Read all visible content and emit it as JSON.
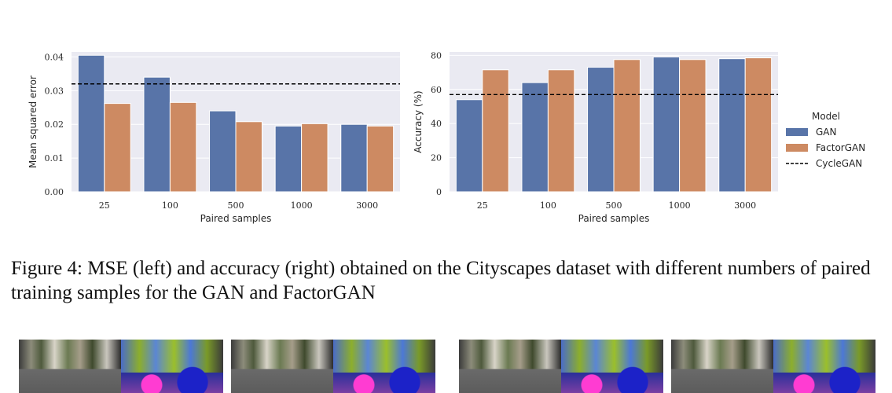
{
  "colors": {
    "gan": "#5874a8",
    "factorgan": "#cd8a62",
    "panel_bg": "#eaeaf2",
    "grid": "#ffffff",
    "baseline": "#000000"
  },
  "legend": {
    "title": "Model",
    "items": [
      {
        "label": "GAN",
        "kind": "bar",
        "color": "#5874a8"
      },
      {
        "label": "FactorGAN",
        "kind": "bar",
        "color": "#cd8a62"
      },
      {
        "label": "CycleGAN",
        "kind": "dashed-line",
        "color": "#000000"
      }
    ],
    "placement": "right"
  },
  "chart_data": [
    {
      "type": "bar",
      "title": "",
      "xlabel": "Paired samples",
      "ylabel": "Mean squared error",
      "categories": [
        "25",
        "100",
        "500",
        "1000",
        "3000"
      ],
      "series": [
        {
          "name": "GAN",
          "values": [
            0.0405,
            0.034,
            0.024,
            0.0195,
            0.02
          ]
        },
        {
          "name": "FactorGAN",
          "values": [
            0.0262,
            0.0265,
            0.0208,
            0.0202,
            0.0195
          ]
        }
      ],
      "reference_lines": [
        {
          "name": "CycleGAN",
          "value": 0.032,
          "style": "dashed"
        }
      ],
      "ylim": [
        0,
        0.0415
      ],
      "yticks": [
        "0.00",
        "0.01",
        "0.02",
        "0.03",
        "0.04"
      ],
      "ytick_values": [
        0,
        0.01,
        0.02,
        0.03,
        0.04
      ],
      "grid": true
    },
    {
      "type": "bar",
      "title": "",
      "xlabel": "Paired samples",
      "ylabel": "Accuracy (%)",
      "categories": [
        "25",
        "100",
        "500",
        "1000",
        "3000"
      ],
      "series": [
        {
          "name": "GAN",
          "values": [
            54,
            64,
            73,
            79,
            78
          ]
        },
        {
          "name": "FactorGAN",
          "values": [
            71.5,
            71.5,
            77.5,
            77.5,
            78.5
          ]
        }
      ],
      "reference_lines": [
        {
          "name": "CycleGAN",
          "value": 57,
          "style": "dashed"
        }
      ],
      "ylim": [
        0,
        82
      ],
      "yticks": [
        "0",
        "20",
        "40",
        "60",
        "80"
      ],
      "ytick_values": [
        0,
        20,
        40,
        60,
        80
      ],
      "grid": true
    }
  ],
  "caption": "Figure 4: MSE (left) and accuracy (right) obtained on the Cityscapes dataset with different numbers of paired training samples for the GAN and FactorGAN",
  "thumbnails": [
    "thumb-1",
    "thumb-2",
    "thumb-3",
    "thumb-4"
  ]
}
